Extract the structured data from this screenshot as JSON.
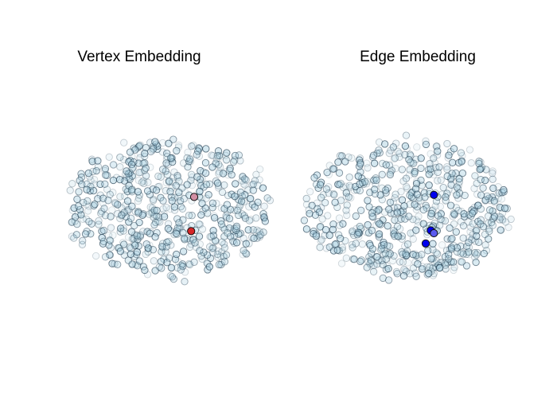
{
  "chart_data": [
    {
      "type": "scatter",
      "title": "Vertex Embedding",
      "xlabel": "",
      "ylabel": "",
      "axes": "hidden",
      "grid": false,
      "xlim": [
        -1,
        1
      ],
      "ylim": [
        -1,
        1
      ],
      "base_color": "#a8cfe0",
      "edge_color": "#1f3a4d",
      "background_points": {
        "count": 620,
        "distribution": "elliptical cloud"
      },
      "highlights": [
        {
          "x": 0.25,
          "y": 0.17,
          "color": "#d28fa4"
        },
        {
          "x": 0.22,
          "y": -0.33,
          "color": "#d62728"
        }
      ]
    },
    {
      "type": "scatter",
      "title": "Edge Embedding",
      "xlabel": "",
      "ylabel": "",
      "axes": "hidden",
      "grid": false,
      "xlim": [
        -1,
        1
      ],
      "ylim": [
        -1,
        1
      ],
      "base_color": "#a8cfe0",
      "edge_color": "#1f3a4d",
      "background_points": {
        "count": 620,
        "distribution": "elliptical cloud"
      },
      "highlights": [
        {
          "x": 0.26,
          "y": 0.2,
          "color": "#0000ee"
        },
        {
          "x": 0.23,
          "y": -0.32,
          "color": "#0000ee"
        },
        {
          "x": 0.18,
          "y": -0.51,
          "color": "#0000ee"
        },
        {
          "x": 0.26,
          "y": -0.36,
          "color": "#5a5aee"
        }
      ]
    }
  ]
}
